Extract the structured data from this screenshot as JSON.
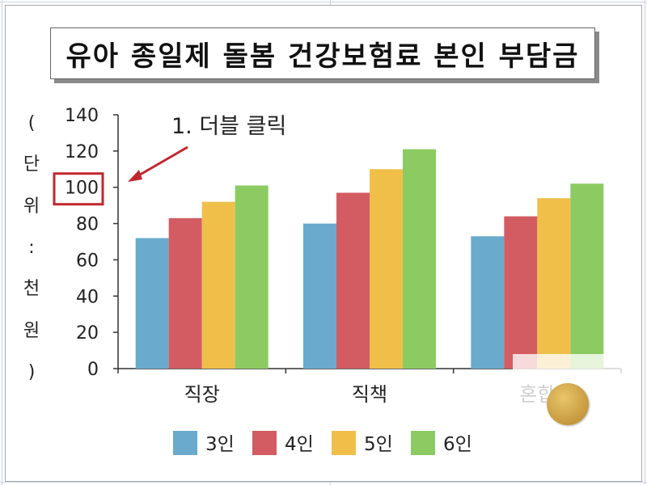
{
  "title": "유아 종일제 돌봄 건강보험료 본인 부담금",
  "annotation": "1. 더블 클릭",
  "colors": {
    "series": [
      "#6aaacc",
      "#d25c62",
      "#efbf4a",
      "#8ccb62"
    ],
    "highlight": "#c0272d",
    "axis": "#222222"
  },
  "chart_data": {
    "type": "bar",
    "title": "유아 종일제 돌봄 건강보험료 본인 부담금",
    "ylabel": "(단위 : 천원)",
    "xlabel": "",
    "categories": [
      "직장",
      "직책",
      "혼합"
    ],
    "series": [
      {
        "name": "3인",
        "values": [
          72,
          80,
          73
        ]
      },
      {
        "name": "4인",
        "values": [
          83,
          97,
          84
        ]
      },
      {
        "name": "5인",
        "values": [
          92,
          110,
          94
        ]
      },
      {
        "name": "6인",
        "values": [
          101,
          121,
          102
        ]
      }
    ],
    "ylim": [
      0,
      140
    ],
    "yticks": [
      0,
      20,
      40,
      60,
      80,
      100,
      120,
      140
    ],
    "highlighted_tick": 100,
    "grid": false,
    "legend_position": "bottom"
  }
}
